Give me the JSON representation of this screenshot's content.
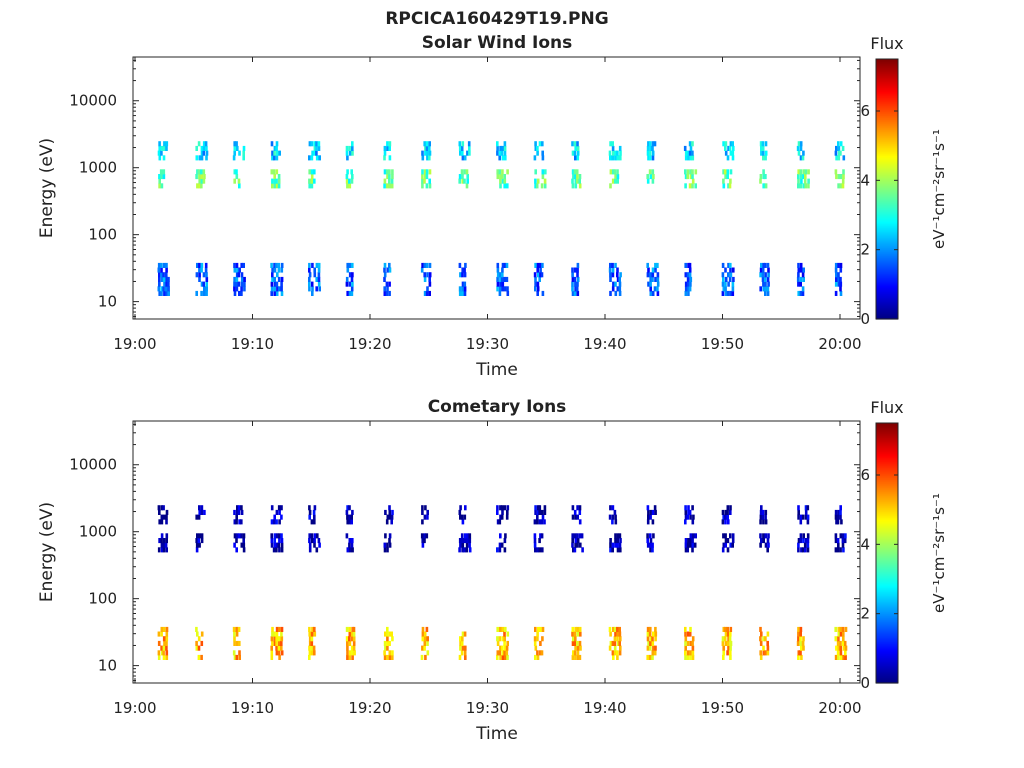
{
  "figure": {
    "title": "RPCICA160429T19.PNG"
  },
  "colorbar": {
    "title": "Flux",
    "label": "eV⁻¹cm⁻²sr⁻¹s⁻¹",
    "ticks": [
      "0",
      "2",
      "4",
      "6"
    ],
    "range": [
      0,
      7.5
    ],
    "colormap": [
      "#00007f",
      "#0000ff",
      "#007fff",
      "#00ffff",
      "#7fff7f",
      "#ffff00",
      "#ff7f00",
      "#ff0000",
      "#7f0000"
    ]
  },
  "chart_data": [
    {
      "type": "heatmap",
      "title": "Solar Wind Ions",
      "xlabel": "Time",
      "ylabel": "Energy (eV)",
      "x_ticks": [
        "19:00",
        "19:10",
        "19:20",
        "19:30",
        "19:40",
        "19:50",
        "20:00"
      ],
      "y_ticks": [
        "10",
        "100",
        "1000",
        "10000"
      ],
      "y_scale": "log",
      "y_range": [
        5.5,
        45000
      ],
      "x_range_minutes": [
        0,
        62
      ],
      "scan_times_minutes": [
        2.3,
        5.5,
        8.7,
        11.9,
        15.1,
        18.3,
        21.5,
        24.7,
        27.9,
        31.1,
        34.3,
        37.5,
        40.7,
        43.9,
        47.1,
        50.3,
        53.5,
        56.7,
        59.9
      ],
      "bands": [
        {
          "name": "~1800 eV",
          "energy_range": [
            1400,
            2300
          ],
          "flux": 2.5
        },
        {
          "name": "~700 eV",
          "energy_range": [
            480,
            1000
          ],
          "flux": 3.5
        },
        {
          "name": "~20 eV",
          "energy_range": [
            12,
            35
          ],
          "flux": 1.6
        }
      ]
    },
    {
      "type": "heatmap",
      "title": "Cometary Ions",
      "xlabel": "Time",
      "ylabel": "Energy (eV)",
      "x_ticks": [
        "19:00",
        "19:10",
        "19:20",
        "19:30",
        "19:40",
        "19:50",
        "20:00"
      ],
      "y_ticks": [
        "10",
        "100",
        "1000",
        "10000"
      ],
      "y_scale": "log",
      "y_range": [
        5.5,
        45000
      ],
      "x_range_minutes": [
        0,
        62
      ],
      "scan_times_minutes": [
        2.3,
        5.5,
        8.7,
        11.9,
        15.1,
        18.3,
        21.5,
        24.7,
        27.9,
        31.1,
        34.3,
        37.5,
        40.7,
        43.9,
        47.1,
        50.3,
        53.5,
        56.7,
        59.9
      ],
      "bands": [
        {
          "name": "~1800 eV",
          "energy_range": [
            1400,
            2300
          ],
          "flux": 0.3
        },
        {
          "name": "~700 eV",
          "energy_range": [
            500,
            950
          ],
          "flux": 0.3
        },
        {
          "name": "~20 eV",
          "energy_range": [
            12,
            35
          ],
          "flux": 5.2
        }
      ]
    }
  ]
}
